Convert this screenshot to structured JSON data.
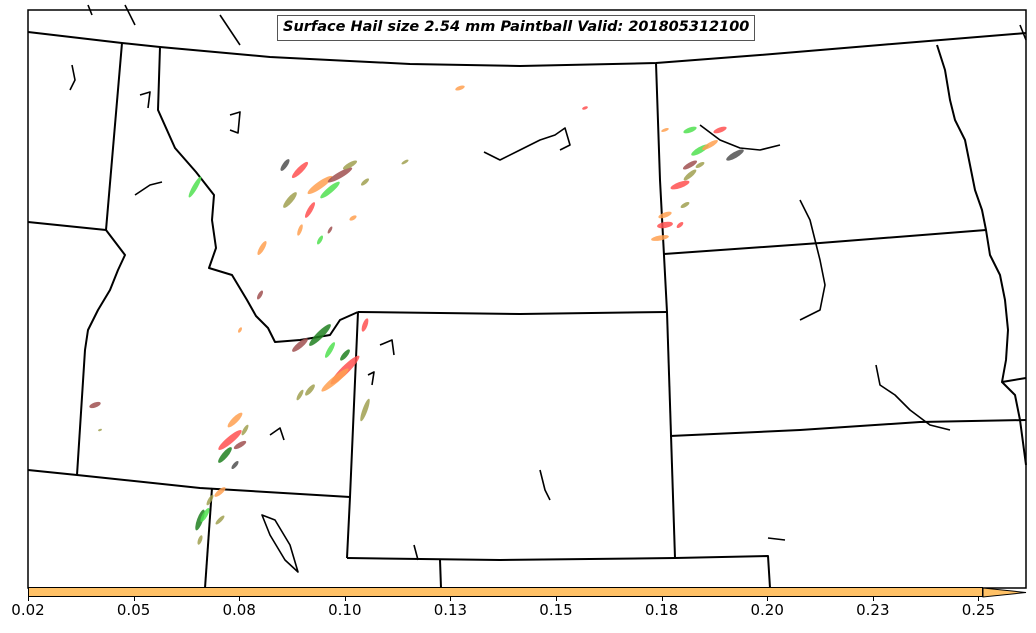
{
  "title": "Surface Hail size 2.54 mm Paintball Valid: 201805312100",
  "colorbar": {
    "color": "#ffc166",
    "extend": "max",
    "tick_labels": [
      "0.02",
      "0.05",
      "0.08",
      "0.10",
      "0.13",
      "0.15",
      "0.18",
      "0.20",
      "0.23",
      "0.25"
    ]
  },
  "paintball_colors": [
    "#ff5050",
    "#ffa050",
    "#50e050",
    "#a0a050",
    "#a05050",
    "#505050",
    "#208020",
    "#ff8020"
  ]
}
